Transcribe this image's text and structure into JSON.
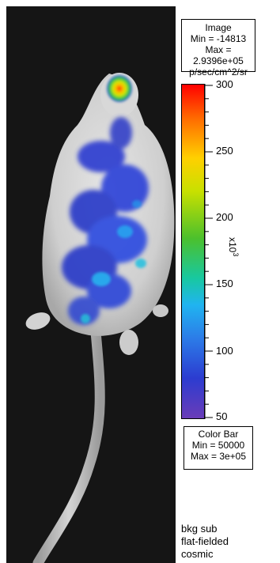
{
  "image_box": {
    "title": "Image",
    "min": "Min = -14813",
    "max": "Max = 2.9396e+05",
    "units": "p/sec/cm^2/sr"
  },
  "scale": {
    "labels": [
      "300",
      "250",
      "200",
      "150",
      "100",
      "50"
    ],
    "multiplier_base": "x10",
    "multiplier_exp": "3"
  },
  "color_bar_box": {
    "title": "Color Bar",
    "min": "Min = 50000",
    "max": "Max = 3e+05"
  },
  "notes": [
    "bkg sub",
    "flat-fielded",
    "cosmic"
  ]
}
